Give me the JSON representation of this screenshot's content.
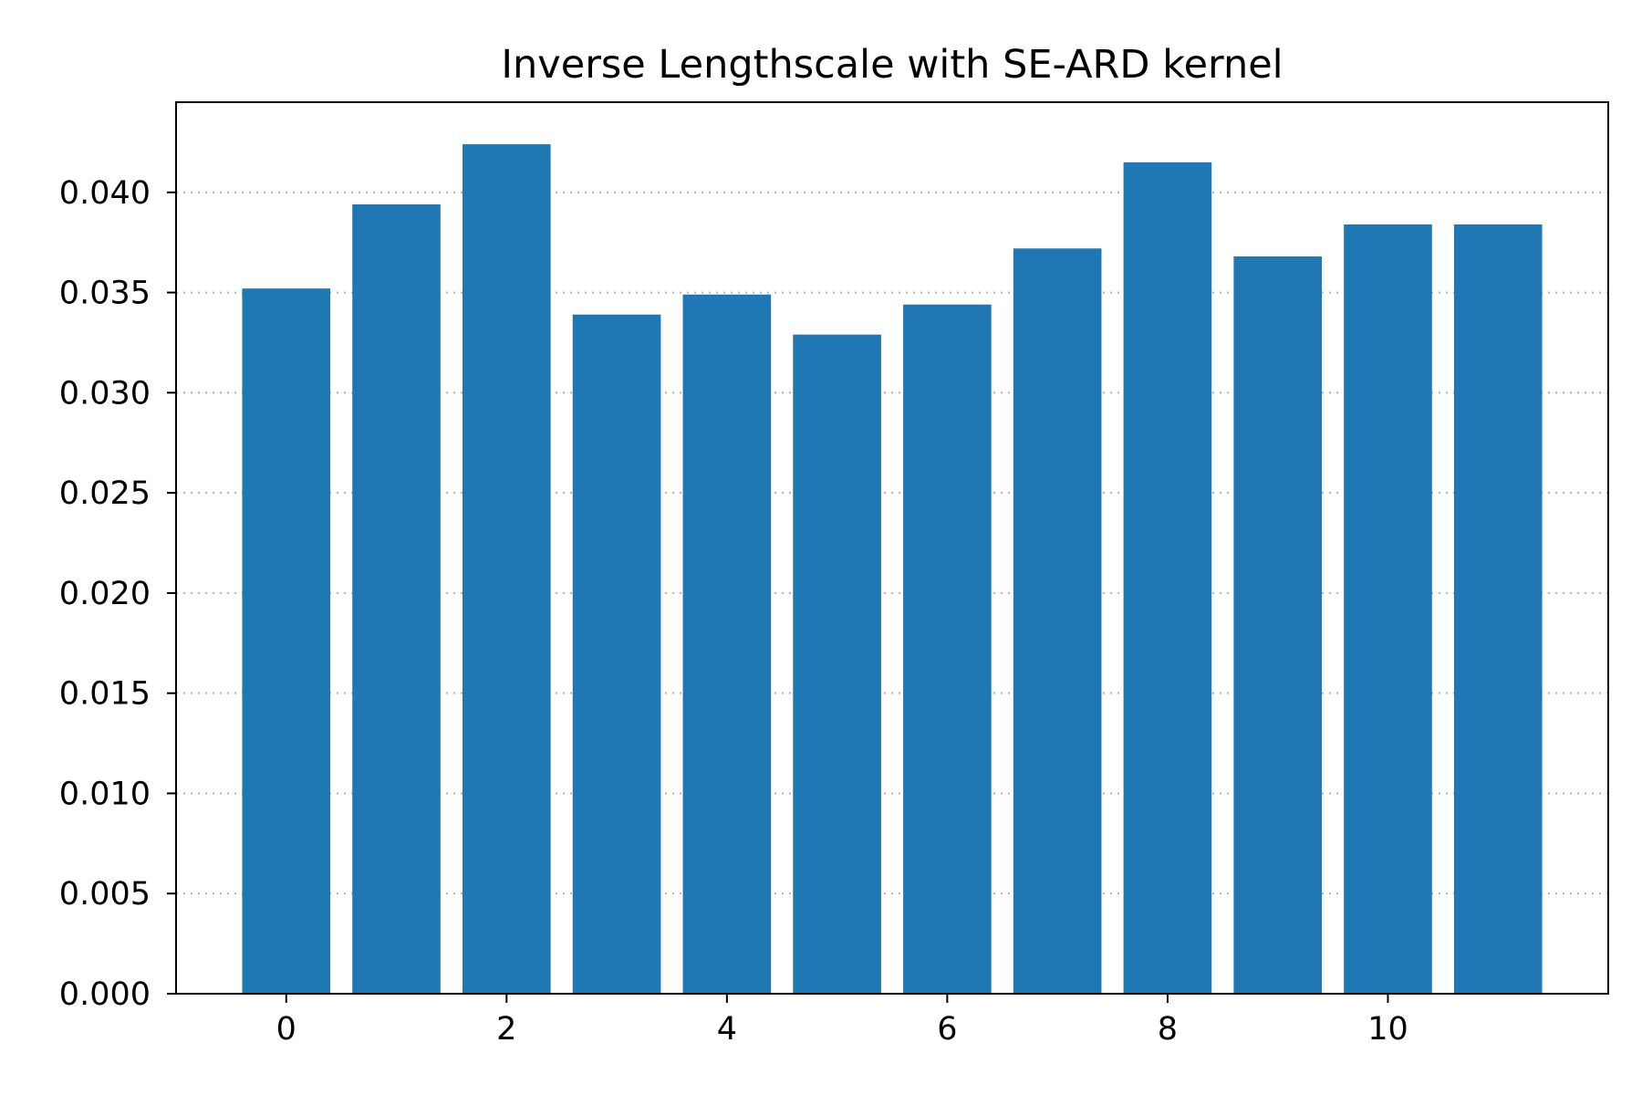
{
  "chart_data": {
    "type": "bar",
    "title": "Inverse Lengthscale with SE-ARD kernel",
    "xlabel": "",
    "ylabel": "",
    "x": [
      0,
      1,
      2,
      3,
      4,
      5,
      6,
      7,
      8,
      9,
      10,
      11
    ],
    "values": [
      0.0352,
      0.0394,
      0.0424,
      0.0339,
      0.0349,
      0.0329,
      0.0344,
      0.0372,
      0.0415,
      0.0368,
      0.0384,
      0.0384
    ],
    "xlim": [
      -1.0,
      12.0
    ],
    "ylim": [
      0,
      0.0445
    ],
    "x_ticks": [
      0,
      2,
      4,
      6,
      8,
      10
    ],
    "x_tick_labels": [
      "0",
      "2",
      "4",
      "6",
      "8",
      "10"
    ],
    "y_ticks": [
      0.0,
      0.005,
      0.01,
      0.015,
      0.02,
      0.025,
      0.03,
      0.035,
      0.04
    ],
    "y_tick_labels": [
      "0.000",
      "0.005",
      "0.010",
      "0.015",
      "0.020",
      "0.025",
      "0.030",
      "0.035",
      "0.040"
    ],
    "grid": "y-dotted",
    "bar_color": "#1f77b4"
  }
}
